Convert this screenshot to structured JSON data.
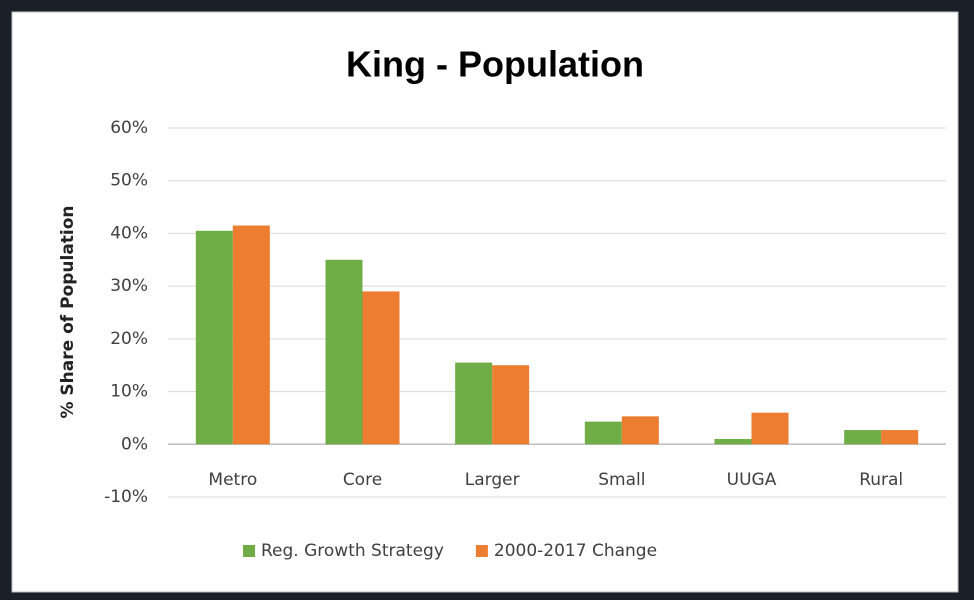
{
  "chart_data": {
    "type": "bar",
    "title": "King - Population",
    "y_label": "% Share of Population",
    "categories": [
      "Metro",
      "Core",
      "Larger",
      "Small",
      "UUGA",
      "Rural"
    ],
    "series": [
      {
        "name": "Reg. Growth Strategy",
        "color": "#70ad47",
        "values": [
          40.5,
          35,
          15.5,
          4.3,
          1,
          2.7
        ]
      },
      {
        "name": "2000-2017 Change",
        "color": "#ed7d31",
        "values": [
          41.5,
          29,
          15,
          5.3,
          6,
          2.7
        ]
      }
    ],
    "ylim": [
      -10,
      60
    ],
    "yticks": [
      {
        "value": -10,
        "label": "-10%"
      },
      {
        "value": 0,
        "label": "0%"
      },
      {
        "value": 10,
        "label": "10%"
      },
      {
        "value": 20,
        "label": "20%"
      },
      {
        "value": 30,
        "label": "30%"
      },
      {
        "value": 40,
        "label": "40%"
      },
      {
        "value": 50,
        "label": "50%"
      },
      {
        "value": 60,
        "label": "60%"
      }
    ],
    "grid": true,
    "legend": "bottom"
  }
}
